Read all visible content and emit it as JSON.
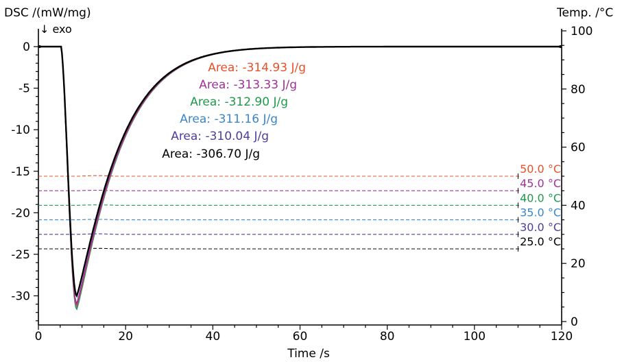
{
  "chart_data": {
    "type": "line",
    "title": "",
    "y_left_label": "DSC /(mW/mg)",
    "exo_label": "↓ exo",
    "y_right_label": "Temp. /°C",
    "xlabel": "Time /s",
    "xlim": [
      0,
      120
    ],
    "ylim_left": [
      -33.8,
      0.3
    ],
    "ylim_right": [
      0,
      100
    ],
    "x_ticks": [
      "0",
      "20",
      "40",
      "60",
      "80",
      "100",
      "120"
    ],
    "y_left_ticks": [
      "0",
      "-5",
      "-10",
      "-15",
      "-20",
      "-25",
      "-30"
    ],
    "y_right_ticks": [
      "100",
      "80",
      "60",
      "40",
      "20",
      "0"
    ],
    "grid": false,
    "dsc_series": [
      {
        "label": "Area: -314.93 J/g",
        "color": "#e8502a",
        "min": -31.2
      },
      {
        "label": "Area: -313.33 J/g",
        "color": "#a0309a",
        "min": -31.0
      },
      {
        "label": "Area: -312.90 J/g",
        "color": "#1e9a4a",
        "min": -31.6
      },
      {
        "label": "Area: -311.16 J/g",
        "color": "#3a86c8",
        "min": -31.3
      },
      {
        "label": "Area: -310.04 J/g",
        "color": "#4b3f9e",
        "min": -30.9
      },
      {
        "label": "Area: -306.70 J/g",
        "color": "#000000",
        "min": -30.0
      }
    ],
    "temperature_series": [
      {
        "label": "50.0 °C",
        "color": "#e8502a",
        "value": 50.0,
        "bump": 0.8
      },
      {
        "label": "45.0 °C",
        "color": "#a0309a",
        "value": 45.0,
        "bump": 0.7
      },
      {
        "label": "40.0 °C",
        "color": "#1e9a4a",
        "value": 40.0,
        "bump": 0.6
      },
      {
        "label": "35.0 °C",
        "color": "#3a86c8",
        "value": 35.0,
        "bump": 0.6
      },
      {
        "label": "30.0 °C",
        "color": "#4b3f9e",
        "value": 30.0,
        "bump": 0.7
      },
      {
        "label": "25.0 °C",
        "color": "#000000",
        "value": 25.0,
        "bump": 0.7
      }
    ]
  }
}
